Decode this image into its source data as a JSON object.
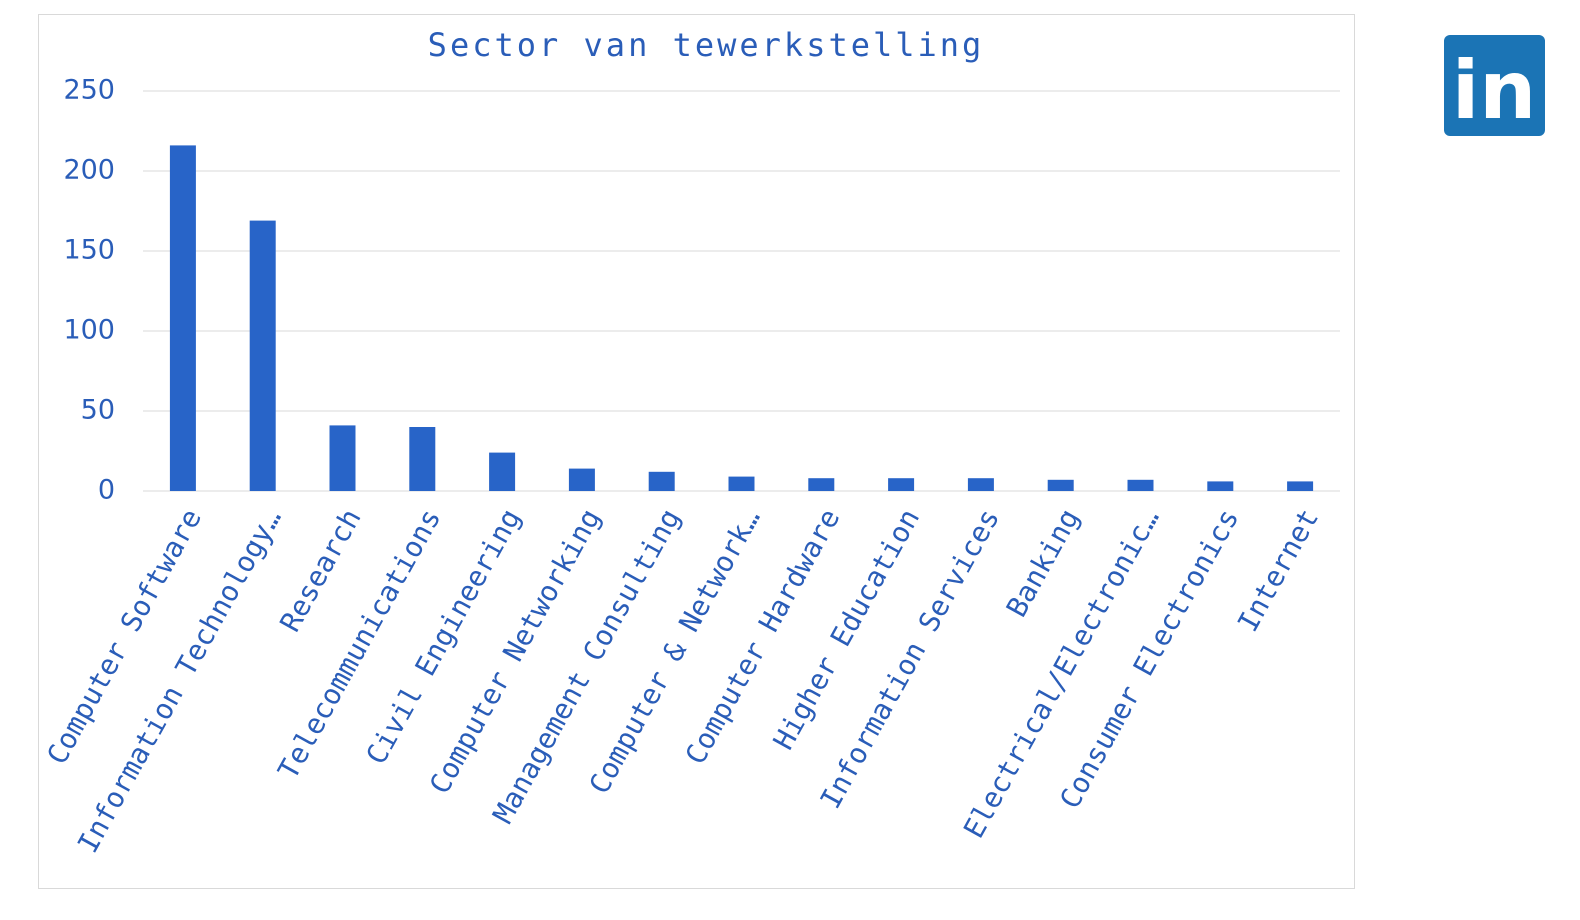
{
  "chart_data": {
    "type": "bar",
    "title": "Sector van tewerkstelling",
    "categories": [
      "Computer Software",
      "Information Technology…",
      "Research",
      "Telecommunications",
      "Civil Engineering",
      "Computer Networking",
      "Management Consulting",
      "Computer & Network…",
      "Computer Hardware",
      "Higher Education",
      "Information Services",
      "Banking",
      "Electrical/Electronic…",
      "Consumer Electronics",
      "Internet"
    ],
    "values": [
      216,
      169,
      41,
      40,
      24,
      14,
      12,
      9,
      8,
      8,
      8,
      7,
      7,
      6,
      6
    ],
    "color": "#2864c8",
    "ylim": [
      0,
      250
    ],
    "yticks": [
      0,
      50,
      100,
      150,
      200,
      250
    ],
    "grid": true
  },
  "logo": {
    "text": "in",
    "color": "#1b74b5"
  }
}
